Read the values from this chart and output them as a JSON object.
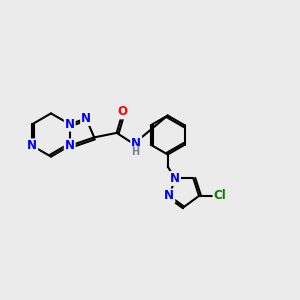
{
  "background_color": "#EBEBEB",
  "bond_color": "#000000",
  "bond_width": 1.5,
  "atom_colors": {
    "N": "#0000FF",
    "O": "#FF0000",
    "Cl": "#008000",
    "C": "#000000",
    "H": "#708090"
  },
  "font_size_atom": 8.5,
  "fig_width": 3.0,
  "fig_height": 3.0
}
